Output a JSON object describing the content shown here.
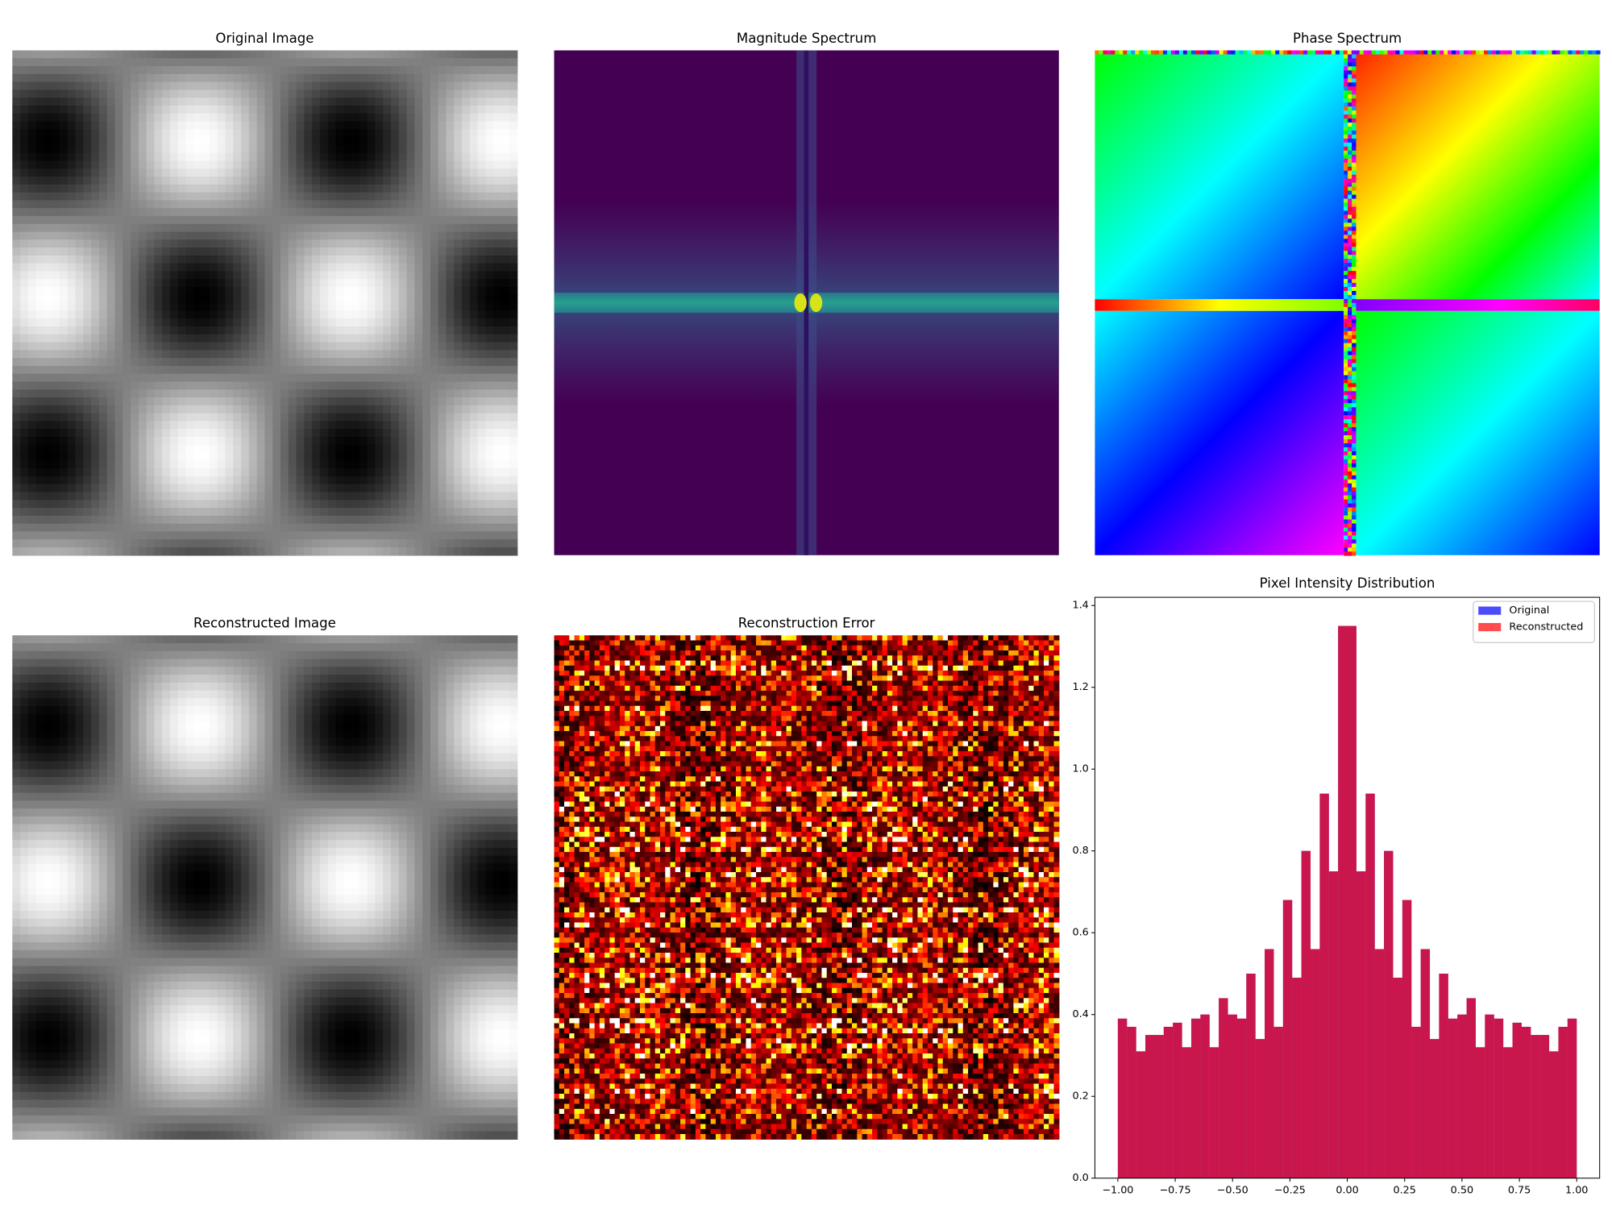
{
  "chart_data": [
    {
      "type": "image",
      "title": "Original Image",
      "cmap": "gray"
    },
    {
      "type": "image",
      "title": "Magnitude Spectrum",
      "cmap": "viridis"
    },
    {
      "type": "image",
      "title": "Phase Spectrum",
      "cmap": "hsv"
    },
    {
      "type": "image",
      "title": "Reconstructed Image",
      "cmap": "gray"
    },
    {
      "type": "image",
      "title": "Reconstruction Error",
      "cmap": "hot"
    },
    {
      "type": "histogram",
      "title": "Pixel Intensity Distribution",
      "bins": [
        -1,
        -0.96,
        -0.92,
        -0.88,
        -0.84,
        -0.8,
        -0.76,
        -0.72,
        -0.68,
        -0.64,
        -0.6,
        -0.56,
        -0.52,
        -0.48,
        -0.44,
        -0.4,
        -0.36,
        -0.32,
        -0.28,
        -0.24,
        -0.2,
        -0.16,
        -0.12,
        -0.08,
        -0.04,
        0,
        0.04,
        0.08,
        0.12,
        0.16,
        0.2,
        0.24,
        0.28,
        0.32,
        0.36,
        0.4,
        0.44,
        0.48,
        0.52,
        0.56,
        0.6,
        0.64,
        0.68,
        0.72,
        0.76,
        0.8,
        0.84,
        0.88,
        0.92,
        0.96,
        1
      ],
      "series": [
        {
          "name": "Original",
          "color": "#0000ff",
          "alpha": 0.7,
          "values": [
            0.39,
            0.37,
            0.31,
            0.35,
            0.35,
            0.37,
            0.38,
            0.32,
            0.39,
            0.4,
            0.32,
            0.44,
            0.4,
            0.39,
            0.5,
            0.34,
            0.56,
            0.37,
            0.68,
            0.49,
            0.8,
            0.56,
            0.94,
            0.75,
            1.35,
            1.35,
            0.75,
            0.94,
            0.56,
            0.8,
            0.49,
            0.68,
            0.37,
            0.56,
            0.34,
            0.5,
            0.39,
            0.4,
            0.44,
            0.32,
            0.4,
            0.39,
            0.32,
            0.38,
            0.37,
            0.35,
            0.35,
            0.31,
            0.37,
            0.39
          ]
        },
        {
          "name": "Reconstructed",
          "color": "#ff0000",
          "alpha": 0.7,
          "values": [
            0.39,
            0.37,
            0.31,
            0.35,
            0.35,
            0.37,
            0.38,
            0.32,
            0.39,
            0.4,
            0.32,
            0.44,
            0.4,
            0.39,
            0.5,
            0.34,
            0.56,
            0.37,
            0.68,
            0.49,
            0.8,
            0.56,
            0.94,
            0.75,
            1.35,
            1.35,
            0.75,
            0.94,
            0.56,
            0.8,
            0.49,
            0.68,
            0.37,
            0.56,
            0.34,
            0.5,
            0.39,
            0.4,
            0.44,
            0.32,
            0.4,
            0.39,
            0.32,
            0.38,
            0.37,
            0.35,
            0.35,
            0.31,
            0.37,
            0.39
          ]
        }
      ],
      "xlim": [
        -1.1,
        1.1
      ],
      "ylim": [
        0,
        1.42
      ],
      "xticks": [
        {
          "value": -1,
          "label": "−1.00"
        },
        {
          "value": -0.75,
          "label": "−0.75"
        },
        {
          "value": -0.5,
          "label": "−0.50"
        },
        {
          "value": -0.25,
          "label": "−0.25"
        },
        {
          "value": 0,
          "label": "0.00"
        },
        {
          "value": 0.25,
          "label": "0.25"
        },
        {
          "value": 0.5,
          "label": "0.50"
        },
        {
          "value": 0.75,
          "label": "0.75"
        },
        {
          "value": 1,
          "label": "1.00"
        }
      ],
      "yticks": [
        {
          "value": 0,
          "label": "0.0"
        },
        0.2,
        0.4,
        0.6,
        0.8,
        {
          "value": 1,
          "label": "1.0"
        },
        1.2,
        1.4
      ],
      "legend": "upper right"
    }
  ]
}
